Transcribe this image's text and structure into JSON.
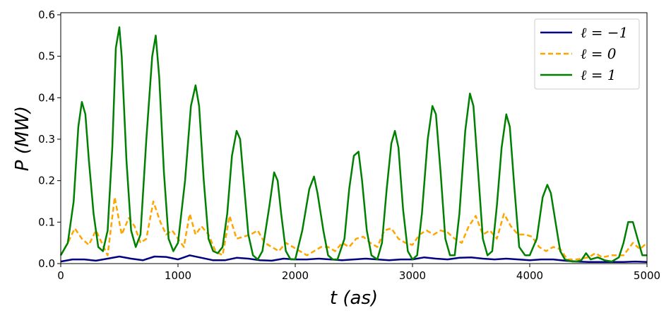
{
  "chart_data": {
    "type": "line",
    "title": "",
    "xlabel": "t (as)",
    "ylabel": "P (MW)",
    "xlim": [
      0,
      5000
    ],
    "ylim": [
      0,
      0.605
    ],
    "xticks": [
      0,
      1000,
      2000,
      3000,
      4000,
      5000
    ],
    "xtick_labels": [
      "0",
      "1000",
      "2000",
      "3000",
      "4000",
      "5000"
    ],
    "yticks": [
      0,
      0.1,
      0.2,
      0.3,
      0.4,
      0.5,
      0.6
    ],
    "ytick_labels": [
      "0.0",
      "0.1",
      "0.2",
      "0.3",
      "0.4",
      "0.5",
      "0.6"
    ],
    "grid": false,
    "legend_position": "top-right",
    "series": [
      {
        "name": "ℓ = −1",
        "color": "#000080",
        "dash": "solid",
        "points": [
          [
            0,
            0.005
          ],
          [
            100,
            0.01
          ],
          [
            200,
            0.01
          ],
          [
            300,
            0.007
          ],
          [
            400,
            0.012
          ],
          [
            500,
            0.017
          ],
          [
            600,
            0.012
          ],
          [
            700,
            0.008
          ],
          [
            800,
            0.017
          ],
          [
            900,
            0.016
          ],
          [
            1000,
            0.01
          ],
          [
            1100,
            0.02
          ],
          [
            1200,
            0.014
          ],
          [
            1300,
            0.008
          ],
          [
            1400,
            0.008
          ],
          [
            1500,
            0.014
          ],
          [
            1600,
            0.012
          ],
          [
            1700,
            0.008
          ],
          [
            1800,
            0.007
          ],
          [
            1900,
            0.012
          ],
          [
            2000,
            0.01
          ],
          [
            2100,
            0.01
          ],
          [
            2200,
            0.012
          ],
          [
            2300,
            0.01
          ],
          [
            2400,
            0.008
          ],
          [
            2500,
            0.01
          ],
          [
            2600,
            0.012
          ],
          [
            2700,
            0.01
          ],
          [
            2800,
            0.008
          ],
          [
            2900,
            0.01
          ],
          [
            3000,
            0.01
          ],
          [
            3100,
            0.015
          ],
          [
            3200,
            0.012
          ],
          [
            3300,
            0.01
          ],
          [
            3400,
            0.014
          ],
          [
            3500,
            0.015
          ],
          [
            3600,
            0.012
          ],
          [
            3700,
            0.01
          ],
          [
            3800,
            0.012
          ],
          [
            3900,
            0.01
          ],
          [
            4000,
            0.008
          ],
          [
            4100,
            0.01
          ],
          [
            4200,
            0.01
          ],
          [
            4300,
            0.007
          ],
          [
            4400,
            0.005
          ],
          [
            4500,
            0.004
          ],
          [
            4600,
            0.004
          ],
          [
            4700,
            0.004
          ],
          [
            4800,
            0.004
          ],
          [
            4900,
            0.005
          ],
          [
            5000,
            0.004
          ]
        ]
      },
      {
        "name": "ℓ = 0",
        "color": "#ffa500",
        "dash": "dashed",
        "points": [
          [
            0,
            0.02
          ],
          [
            60,
            0.05
          ],
          [
            120,
            0.085
          ],
          [
            180,
            0.06
          ],
          [
            240,
            0.045
          ],
          [
            300,
            0.08
          ],
          [
            350,
            0.05
          ],
          [
            400,
            0.02
          ],
          [
            460,
            0.16
          ],
          [
            520,
            0.07
          ],
          [
            580,
            0.11
          ],
          [
            630,
            0.09
          ],
          [
            680,
            0.05
          ],
          [
            730,
            0.06
          ],
          [
            790,
            0.15
          ],
          [
            850,
            0.1
          ],
          [
            900,
            0.07
          ],
          [
            950,
            0.08
          ],
          [
            1000,
            0.06
          ],
          [
            1050,
            0.04
          ],
          [
            1100,
            0.12
          ],
          [
            1150,
            0.07
          ],
          [
            1200,
            0.09
          ],
          [
            1260,
            0.07
          ],
          [
            1320,
            0.03
          ],
          [
            1380,
            0.02
          ],
          [
            1440,
            0.115
          ],
          [
            1500,
            0.06
          ],
          [
            1560,
            0.065
          ],
          [
            1620,
            0.07
          ],
          [
            1680,
            0.08
          ],
          [
            1740,
            0.05
          ],
          [
            1800,
            0.04
          ],
          [
            1860,
            0.03
          ],
          [
            1920,
            0.05
          ],
          [
            1980,
            0.04
          ],
          [
            2040,
            0.03
          ],
          [
            2100,
            0.02
          ],
          [
            2160,
            0.03
          ],
          [
            2220,
            0.04
          ],
          [
            2280,
            0.04
          ],
          [
            2340,
            0.03
          ],
          [
            2400,
            0.05
          ],
          [
            2460,
            0.04
          ],
          [
            2520,
            0.06
          ],
          [
            2580,
            0.065
          ],
          [
            2640,
            0.05
          ],
          [
            2700,
            0.04
          ],
          [
            2760,
            0.08
          ],
          [
            2820,
            0.085
          ],
          [
            2880,
            0.06
          ],
          [
            2940,
            0.05
          ],
          [
            3000,
            0.045
          ],
          [
            3060,
            0.07
          ],
          [
            3120,
            0.08
          ],
          [
            3180,
            0.07
          ],
          [
            3240,
            0.08
          ],
          [
            3300,
            0.075
          ],
          [
            3360,
            0.06
          ],
          [
            3420,
            0.05
          ],
          [
            3480,
            0.09
          ],
          [
            3540,
            0.115
          ],
          [
            3600,
            0.07
          ],
          [
            3660,
            0.08
          ],
          [
            3720,
            0.06
          ],
          [
            3780,
            0.12
          ],
          [
            3840,
            0.09
          ],
          [
            3900,
            0.07
          ],
          [
            3960,
            0.07
          ],
          [
            4020,
            0.065
          ],
          [
            4080,
            0.04
          ],
          [
            4140,
            0.03
          ],
          [
            4200,
            0.04
          ],
          [
            4260,
            0.035
          ],
          [
            4320,
            0.01
          ],
          [
            4400,
            0.01
          ],
          [
            4500,
            0.015
          ],
          [
            4560,
            0.025
          ],
          [
            4620,
            0.015
          ],
          [
            4700,
            0.02
          ],
          [
            4800,
            0.02
          ],
          [
            4880,
            0.05
          ],
          [
            4940,
            0.035
          ],
          [
            5000,
            0.05
          ]
        ]
      },
      {
        "name": "ℓ = 1",
        "color": "#008000",
        "dash": "solid",
        "points": [
          [
            0,
            0.02
          ],
          [
            60,
            0.05
          ],
          [
            110,
            0.15
          ],
          [
            150,
            0.33
          ],
          [
            180,
            0.39
          ],
          [
            210,
            0.36
          ],
          [
            240,
            0.25
          ],
          [
            280,
            0.12
          ],
          [
            320,
            0.04
          ],
          [
            360,
            0.03
          ],
          [
            400,
            0.08
          ],
          [
            440,
            0.28
          ],
          [
            470,
            0.52
          ],
          [
            500,
            0.57
          ],
          [
            520,
            0.5
          ],
          [
            560,
            0.25
          ],
          [
            600,
            0.08
          ],
          [
            640,
            0.04
          ],
          [
            680,
            0.07
          ],
          [
            730,
            0.3
          ],
          [
            780,
            0.5
          ],
          [
            810,
            0.55
          ],
          [
            840,
            0.45
          ],
          [
            880,
            0.22
          ],
          [
            920,
            0.06
          ],
          [
            960,
            0.03
          ],
          [
            1000,
            0.05
          ],
          [
            1060,
            0.2
          ],
          [
            1110,
            0.38
          ],
          [
            1150,
            0.43
          ],
          [
            1180,
            0.38
          ],
          [
            1220,
            0.2
          ],
          [
            1260,
            0.06
          ],
          [
            1300,
            0.03
          ],
          [
            1340,
            0.025
          ],
          [
            1380,
            0.04
          ],
          [
            1420,
            0.12
          ],
          [
            1460,
            0.26
          ],
          [
            1500,
            0.32
          ],
          [
            1530,
            0.3
          ],
          [
            1560,
            0.2
          ],
          [
            1600,
            0.07
          ],
          [
            1640,
            0.02
          ],
          [
            1680,
            0.01
          ],
          [
            1720,
            0.03
          ],
          [
            1780,
            0.14
          ],
          [
            1820,
            0.22
          ],
          [
            1850,
            0.2
          ],
          [
            1880,
            0.12
          ],
          [
            1920,
            0.03
          ],
          [
            1960,
            0.01
          ],
          [
            2000,
            0.01
          ],
          [
            2060,
            0.08
          ],
          [
            2120,
            0.18
          ],
          [
            2160,
            0.21
          ],
          [
            2190,
            0.17
          ],
          [
            2240,
            0.08
          ],
          [
            2280,
            0.02
          ],
          [
            2320,
            0.01
          ],
          [
            2360,
            0.01
          ],
          [
            2420,
            0.06
          ],
          [
            2460,
            0.18
          ],
          [
            2500,
            0.26
          ],
          [
            2540,
            0.27
          ],
          [
            2570,
            0.2
          ],
          [
            2610,
            0.08
          ],
          [
            2650,
            0.02
          ],
          [
            2700,
            0.01
          ],
          [
            2740,
            0.05
          ],
          [
            2780,
            0.18
          ],
          [
            2820,
            0.29
          ],
          [
            2850,
            0.32
          ],
          [
            2880,
            0.28
          ],
          [
            2920,
            0.13
          ],
          [
            2960,
            0.03
          ],
          [
            3000,
            0.01
          ],
          [
            3040,
            0.02
          ],
          [
            3080,
            0.12
          ],
          [
            3130,
            0.3
          ],
          [
            3170,
            0.38
          ],
          [
            3200,
            0.36
          ],
          [
            3240,
            0.22
          ],
          [
            3280,
            0.06
          ],
          [
            3320,
            0.02
          ],
          [
            3360,
            0.02
          ],
          [
            3400,
            0.12
          ],
          [
            3450,
            0.32
          ],
          [
            3490,
            0.41
          ],
          [
            3520,
            0.38
          ],
          [
            3560,
            0.22
          ],
          [
            3600,
            0.06
          ],
          [
            3640,
            0.02
          ],
          [
            3680,
            0.03
          ],
          [
            3720,
            0.14
          ],
          [
            3760,
            0.28
          ],
          [
            3800,
            0.36
          ],
          [
            3830,
            0.33
          ],
          [
            3870,
            0.18
          ],
          [
            3910,
            0.04
          ],
          [
            3960,
            0.02
          ],
          [
            4000,
            0.02
          ],
          [
            4060,
            0.06
          ],
          [
            4110,
            0.16
          ],
          [
            4150,
            0.19
          ],
          [
            4180,
            0.17
          ],
          [
            4220,
            0.1
          ],
          [
            4260,
            0.03
          ],
          [
            4300,
            0.01
          ],
          [
            4360,
            0.005
          ],
          [
            4400,
            0.005
          ],
          [
            4440,
            0.008
          ],
          [
            4480,
            0.025
          ],
          [
            4520,
            0.01
          ],
          [
            4580,
            0.015
          ],
          [
            4640,
            0.008
          ],
          [
            4700,
            0.005
          ],
          [
            4760,
            0.015
          ],
          [
            4800,
            0.05
          ],
          [
            4840,
            0.1
          ],
          [
            4880,
            0.1
          ],
          [
            4920,
            0.06
          ],
          [
            4960,
            0.02
          ],
          [
            5000,
            0.02
          ]
        ]
      }
    ]
  }
}
